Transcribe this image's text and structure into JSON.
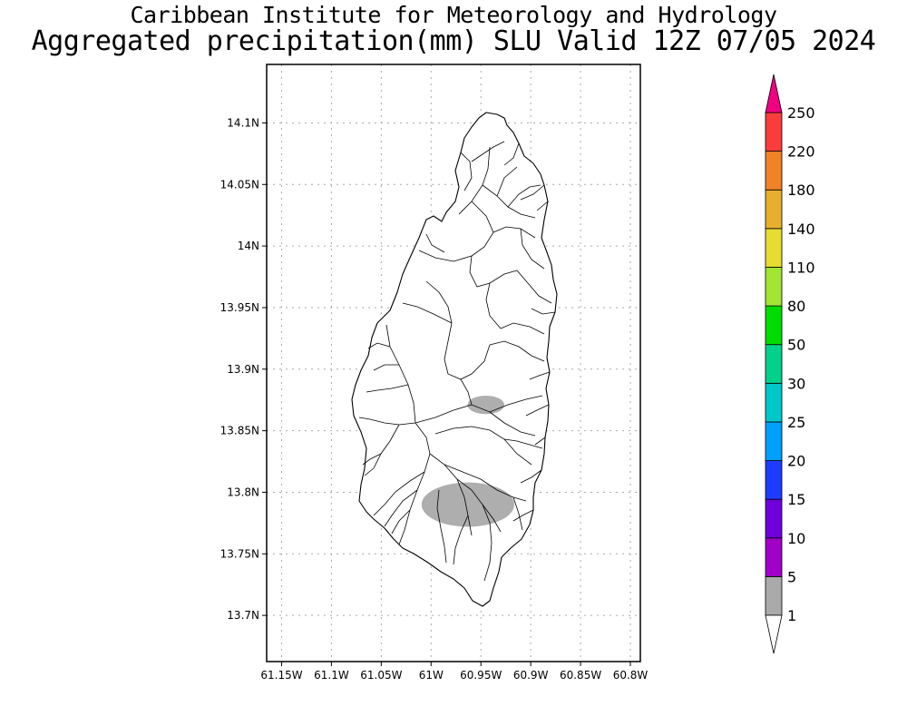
{
  "title": {
    "line1": "Caribbean Institute for Meteorology and Hydrology",
    "line2": "Aggregated precipitation(mm) SLU Valid 12Z 07/05 2024"
  },
  "map": {
    "lat_ticks": [
      "14.1N",
      "14.05N",
      "14N",
      "13.95N",
      "13.9N",
      "13.85N",
      "13.8N",
      "13.75N",
      "13.7N"
    ],
    "lon_ticks": [
      "61.15W",
      "61.1W",
      "61.05W",
      "61W",
      "60.95W",
      "60.9W",
      "60.85W",
      "60.8W"
    ],
    "lat_values": [
      14.1,
      14.05,
      14.0,
      13.95,
      13.9,
      13.85,
      13.8,
      13.75,
      13.7
    ],
    "lon_values": [
      -61.15,
      -61.1,
      -61.05,
      -61.0,
      -60.95,
      -60.9,
      -60.85,
      -60.8
    ],
    "lat_range": [
      13.6625,
      14.1475
    ],
    "lon_range": [
      -61.165,
      -60.79
    ],
    "grid": "dotted",
    "precip_areas": [
      {
        "center_lon": -60.945,
        "center_lat": 13.871,
        "rx_deg": 0.0185,
        "ry_deg": 0.0075,
        "class": "1-5"
      },
      {
        "center_lon": -60.963,
        "center_lat": 13.79,
        "rx_deg": 0.0465,
        "ry_deg": 0.018,
        "class": "1-5"
      }
    ]
  },
  "colorbar": {
    "labels": [
      "1",
      "5",
      "10",
      "15",
      "20",
      "25",
      "30",
      "50",
      "80",
      "110",
      "140",
      "180",
      "220",
      "250"
    ],
    "colors": [
      "#aaaaaa",
      "#a000c8",
      "#6e00dc",
      "#1e3cff",
      "#00a0ff",
      "#00c8c8",
      "#00d28c",
      "#00dc00",
      "#a0e632",
      "#e6dc32",
      "#e6af2d",
      "#f08228",
      "#fa3c3c",
      "#f00082"
    ],
    "under_color": "#ffffff",
    "over_color": "#f00082"
  },
  "colors": {
    "precip_fill": "#aaaaaa",
    "land_fill": "#ffffff",
    "outline": "#000000",
    "grid": "#aaaaaa"
  }
}
